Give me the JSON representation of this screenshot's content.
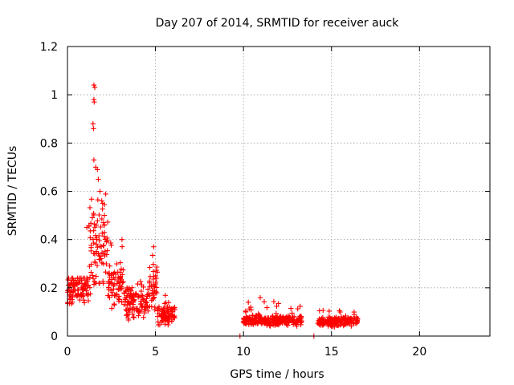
{
  "chart_data": {
    "type": "scatter",
    "title": "Day 207 of 2014, SRMTID for receiver auck",
    "xlabel": "GPS time / hours",
    "ylabel": "SRMTID / TECUs",
    "xlim": [
      0,
      24
    ],
    "ylim": [
      0,
      1.2
    ],
    "xticks": [
      0,
      5,
      10,
      15,
      20
    ],
    "yticks": [
      0,
      0.2,
      0.4,
      0.6,
      0.8,
      1,
      1.2
    ],
    "ytick_labels": [
      "0",
      "0.2",
      "0.4",
      "0.6",
      "0.8",
      "1",
      "1.2"
    ],
    "grid": true,
    "marker": "plus",
    "color": "#ff0000",
    "series": [
      {
        "name": "SRMTID",
        "segments": [
          {
            "start": 0.0,
            "end": 1.2,
            "base": 0.2,
            "spread": 0.08,
            "peak": 0.24
          },
          {
            "start": 1.2,
            "end": 2.3,
            "base": 0.35,
            "spread": 0.22,
            "peak": 0.72
          },
          {
            "start": 2.3,
            "end": 3.2,
            "base": 0.22,
            "spread": 0.12,
            "peak": 0.4
          },
          {
            "start": 3.2,
            "end": 4.6,
            "base": 0.14,
            "spread": 0.08,
            "peak": 0.25
          },
          {
            "start": 4.6,
            "end": 5.1,
            "base": 0.2,
            "spread": 0.1,
            "peak": 0.37
          },
          {
            "start": 5.1,
            "end": 6.1,
            "base": 0.09,
            "spread": 0.05,
            "peak": 0.18
          },
          {
            "start": 9.9,
            "end": 13.3,
            "base": 0.065,
            "spread": 0.025,
            "peak": 0.16
          },
          {
            "start": 14.2,
            "end": 16.5,
            "base": 0.06,
            "spread": 0.025,
            "peak": 0.11
          }
        ],
        "points": [
          [
            1.5,
            1.04
          ],
          [
            1.55,
            1.03
          ],
          [
            1.5,
            0.98
          ],
          [
            1.52,
            0.97
          ],
          [
            1.45,
            0.88
          ],
          [
            1.48,
            0.86
          ],
          [
            1.5,
            0.73
          ],
          [
            1.6,
            0.7
          ],
          [
            1.7,
            0.69
          ],
          [
            1.75,
            0.65
          ],
          [
            1.85,
            0.6
          ],
          [
            1.95,
            0.56
          ],
          [
            2.0,
            0.55
          ],
          [
            2.1,
            0.5
          ],
          [
            2.05,
            0.47
          ],
          [
            1.1,
            0.45
          ],
          [
            4.9,
            0.37
          ],
          [
            3.1,
            0.4
          ],
          [
            9.8,
            0.0
          ],
          [
            14.0,
            0.0
          ]
        ]
      }
    ]
  }
}
